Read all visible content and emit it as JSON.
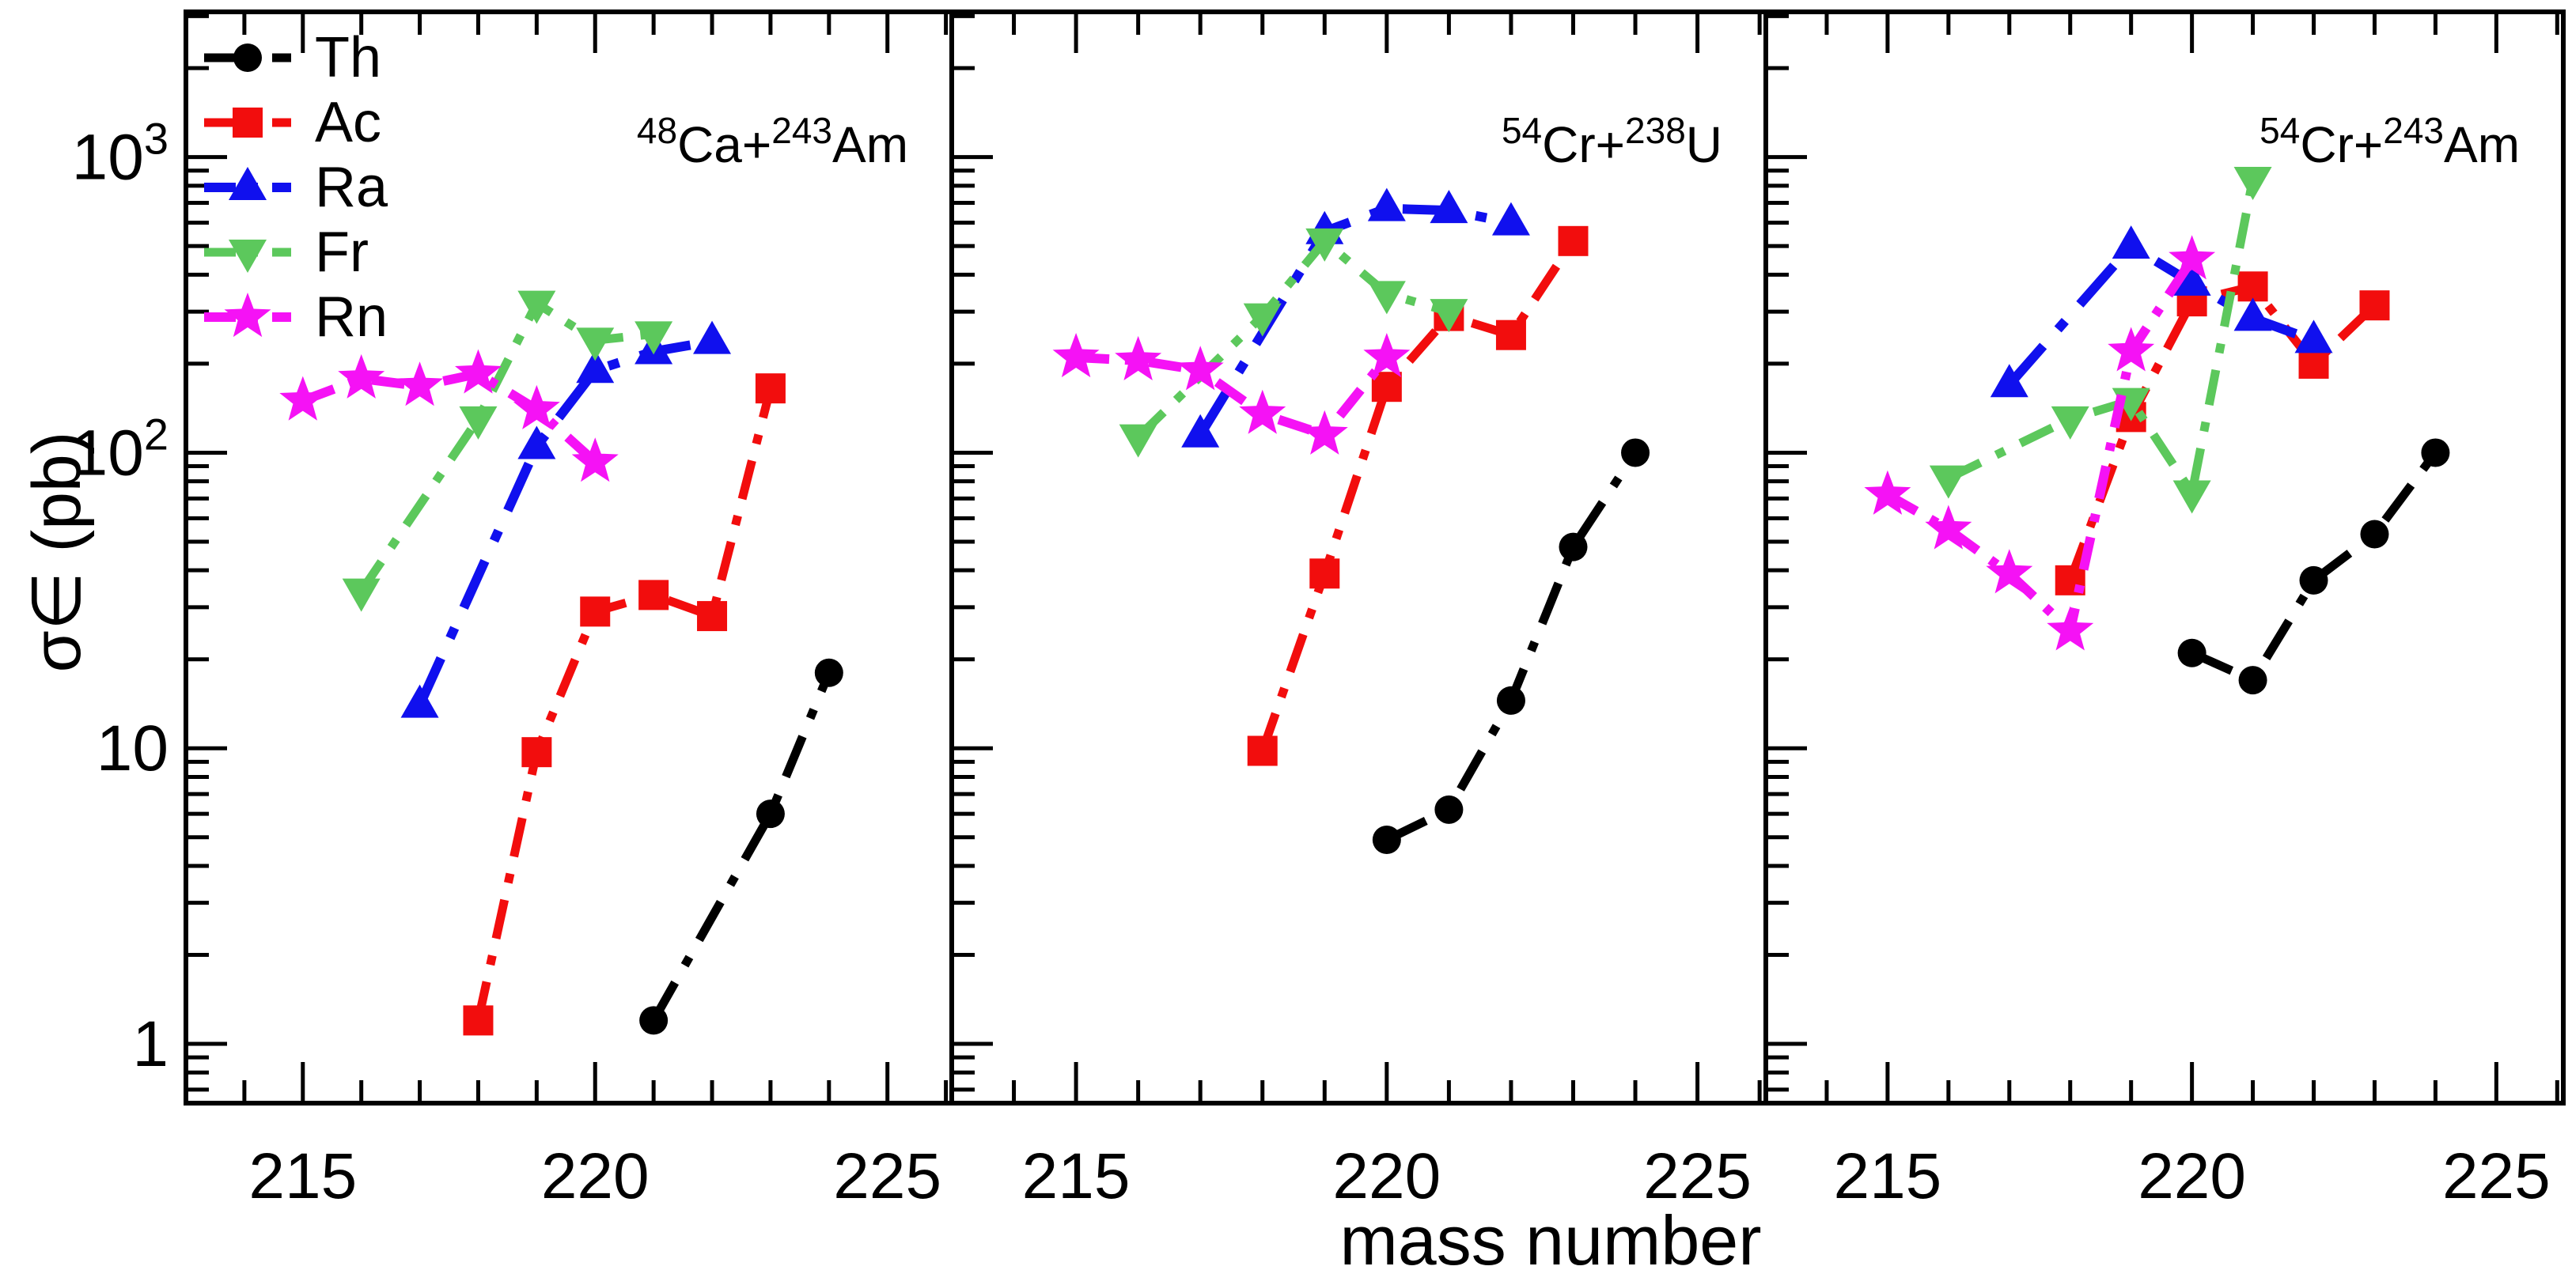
{
  "chart_data": {
    "type": "line",
    "xlabel": "mass number",
    "ylabel": "σ∈ (pb)",
    "xlim": [
      213,
      226.1
    ],
    "ylim": [
      0.63,
      3100
    ],
    "xticks": [
      215,
      220,
      225
    ],
    "x_minor_step": 1,
    "yticks": [
      {
        "v": 1,
        "parts": [
          {
            "t": "1",
            "sup": false
          }
        ]
      },
      {
        "v": 10,
        "parts": [
          {
            "t": "10",
            "sup": false
          }
        ]
      },
      {
        "v": 100,
        "parts": [
          {
            "t": "10",
            "sup": false
          },
          {
            "t": "2",
            "sup": true
          }
        ]
      },
      {
        "v": 1000,
        "parts": [
          {
            "t": "10",
            "sup": false
          },
          {
            "t": "3",
            "sup": true
          }
        ]
      }
    ],
    "y_minor": [
      0.7,
      0.8,
      0.9,
      2,
      3,
      4,
      5,
      6,
      7,
      8,
      9,
      20,
      30,
      40,
      50,
      60,
      70,
      80,
      90,
      200,
      300,
      400,
      500,
      600,
      700,
      800,
      900,
      2000,
      3000
    ],
    "grid": false,
    "legend_position": "top-left-first-panel",
    "legend": [
      {
        "label": "Th",
        "color": "#000000",
        "marker": "circle",
        "dash": "55 25 12 25",
        "width": 11
      },
      {
        "label": "Ac",
        "color": "#f20d0d",
        "marker": "square",
        "dash": "50 22 12 22",
        "width": 11
      },
      {
        "label": "Ra",
        "color": "#1010ee",
        "marker": "triangle-up",
        "dash": "65 28 14 28",
        "width": 12
      },
      {
        "label": "Fr",
        "color": "#5cc85c",
        "marker": "triangle-down",
        "dash": "45 22 12 22",
        "width": 11
      },
      {
        "label": "Rn",
        "color": "#f512f5",
        "marker": "star",
        "dash": "42 20 10 20",
        "width": 12
      }
    ],
    "panel_x": [
      [
        235,
        1203
      ],
      [
        1203,
        2232
      ],
      [
        2232,
        3240
      ]
    ],
    "plot_y": [
      15,
      1395
    ],
    "panels": [
      {
        "title_parts": [
          {
            "t": "48",
            "sup": true
          },
          {
            "t": "Ca+",
            "sup": false
          },
          {
            "t": "243",
            "sup": true
          },
          {
            "t": "Am",
            "sup": false
          }
        ],
        "series": [
          {
            "name": "Th",
            "points": [
              [
                221,
                1.2
              ],
              [
                223,
                6
              ],
              [
                224,
                18
              ]
            ]
          },
          {
            "name": "Ac",
            "points": [
              [
                218,
                1.2
              ],
              [
                219,
                9.7
              ],
              [
                220,
                29
              ],
              [
                221,
                33
              ],
              [
                222,
                28
              ],
              [
                223,
                165
              ]
            ]
          },
          {
            "name": "Ra",
            "points": [
              [
                217,
                14
              ],
              [
                219,
                105
              ],
              [
                220,
                190
              ],
              [
                221,
                220
              ],
              [
                222,
                238
              ]
            ]
          },
          {
            "name": "Fr",
            "points": [
              [
                216,
                34
              ],
              [
                218,
                130
              ],
              [
                219,
                320
              ],
              [
                220,
                240
              ],
              [
                221,
                252
              ]
            ]
          },
          {
            "name": "Rn",
            "points": [
              [
                215,
                150
              ],
              [
                216,
                178
              ],
              [
                217,
                168
              ],
              [
                218,
                185
              ],
              [
                219,
                140
              ],
              [
                220,
                93
              ]
            ]
          }
        ]
      },
      {
        "title_parts": [
          {
            "t": "54",
            "sup": true
          },
          {
            "t": "Cr+",
            "sup": false
          },
          {
            "t": "238",
            "sup": true
          },
          {
            "t": "U",
            "sup": false
          }
        ],
        "series": [
          {
            "name": "Th",
            "points": [
              [
                220,
                4.9
              ],
              [
                221,
                6.2
              ],
              [
                222,
                14.5
              ],
              [
                223,
                48
              ],
              [
                224,
                100
              ]
            ]
          },
          {
            "name": "Ac",
            "points": [
              [
                218,
                9.8
              ],
              [
                219,
                39
              ],
              [
                220,
                167
              ],
              [
                221,
                290
              ],
              [
                222,
                250
              ],
              [
                223,
                520
              ]
            ]
          },
          {
            "name": "Ra",
            "points": [
              [
                217,
                115
              ],
              [
                219,
                560
              ],
              [
                220,
                670
              ],
              [
                221,
                660
              ],
              [
                222,
                600
              ]
            ]
          },
          {
            "name": "Fr",
            "points": [
              [
                216,
                113
              ],
              [
                218,
                290
              ],
              [
                219,
                520
              ],
              [
                220,
                345
              ],
              [
                221,
                300
              ]
            ]
          },
          {
            "name": "Rn",
            "points": [
              [
                215,
                210
              ],
              [
                216,
                205
              ],
              [
                217,
                190
              ],
              [
                218,
                135
              ],
              [
                219,
                115
              ],
              [
                220,
                210
              ]
            ]
          }
        ]
      },
      {
        "title_parts": [
          {
            "t": "54",
            "sup": true
          },
          {
            "t": "Cr+",
            "sup": false
          },
          {
            "t": "243",
            "sup": true
          },
          {
            "t": "Am",
            "sup": false
          }
        ],
        "series": [
          {
            "name": "Th",
            "points": [
              [
                220,
                21
              ],
              [
                221,
                17
              ],
              [
                222,
                37
              ],
              [
                223,
                53
              ],
              [
                224,
                100
              ]
            ]
          },
          {
            "name": "Ac",
            "points": [
              [
                218,
                37
              ],
              [
                219,
                132
              ],
              [
                220,
                325
              ],
              [
                221,
                365
              ],
              [
                222,
                200
              ],
              [
                223,
                315
              ]
            ]
          },
          {
            "name": "Ra",
            "points": [
              [
                217,
                170
              ],
              [
                219,
                500
              ],
              [
                220,
                375
              ],
              [
                221,
                285
              ],
              [
                222,
                240
              ]
            ]
          },
          {
            "name": "Fr",
            "points": [
              [
                216,
                82
              ],
              [
                218,
                130
              ],
              [
                219,
                150
              ],
              [
                220,
                73
              ],
              [
                221,
                840
              ]
            ]
          },
          {
            "name": "Rn",
            "points": [
              [
                215,
                72
              ],
              [
                216,
                55
              ],
              [
                217,
                39
              ],
              [
                218,
                25
              ],
              [
                219,
                220
              ],
              [
                220,
                450
              ]
            ]
          }
        ]
      }
    ]
  }
}
